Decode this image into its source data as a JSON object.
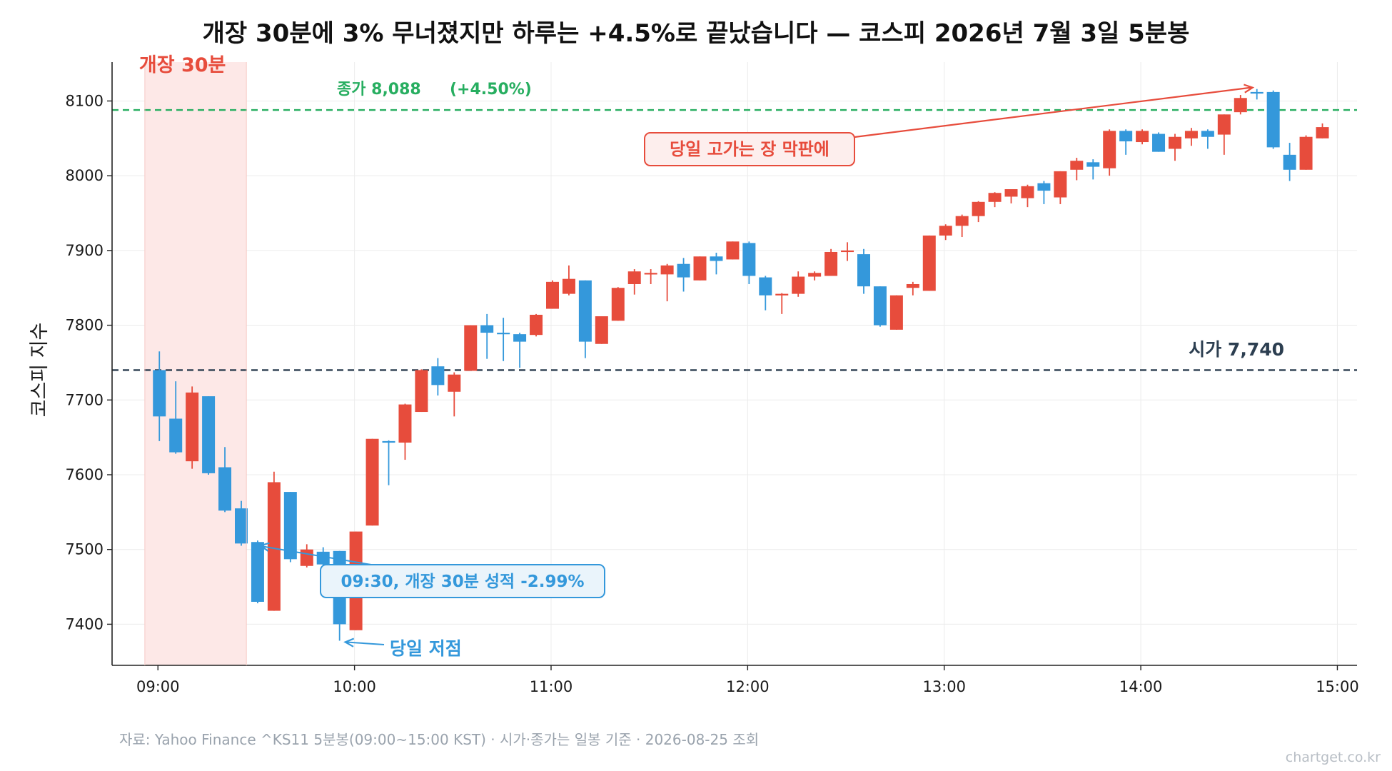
{
  "colors": {
    "up": "#e74c3c",
    "down": "#3498db",
    "open_line": "#2c3e50",
    "close_line": "#27ae60",
    "open_window": "#fde8e7",
    "grid": "#ececec"
  },
  "chart_data": {
    "type": "candlestick",
    "title": "개장 30분에 3% 무너졌지만 하루는 +4.5%로 끝났습니다 — 코스피 2026년 7월 3일 5분봉",
    "ylabel": "코스피 지수",
    "xlabel": "",
    "ylim": [
      7345,
      8152
    ],
    "xlim": [
      "08:46",
      "15:06"
    ],
    "yticks": [
      7400,
      7500,
      7600,
      7700,
      7800,
      7900,
      8000,
      8100
    ],
    "ytick_labels": [
      "7400",
      "7500",
      "7600",
      "7700",
      "7800",
      "7900",
      "8000",
      "8100"
    ],
    "xticks": [
      "09:00",
      "10:00",
      "11:00",
      "12:00",
      "13:00",
      "14:00",
      "15:00"
    ],
    "grid": true,
    "legend": "none",
    "open_level": 7740,
    "close_level": 8088,
    "open_window": {
      "start": "08:56",
      "end": "09:27"
    },
    "annotations": {
      "open_window_label": "개장 30분",
      "close_label": "종가 8,088",
      "close_change": "(+4.50%)",
      "open_label": "시가 7,740",
      "high_note": "당일 고가는 장 막판에",
      "low_note": "당일 저점",
      "window_note": "09:30, 개장 30분 성적 -2.99%"
    },
    "candles": [
      {
        "t": "09:00",
        "o": 7740,
        "h": 7765,
        "l": 7645,
        "c": 7678
      },
      {
        "t": "09:05",
        "o": 7675,
        "h": 7725,
        "l": 7628,
        "c": 7630
      },
      {
        "t": "09:10",
        "o": 7618,
        "h": 7718,
        "l": 7608,
        "c": 7710
      },
      {
        "t": "09:15",
        "o": 7705,
        "h": 7705,
        "l": 7600,
        "c": 7602
      },
      {
        "t": "09:20",
        "o": 7610,
        "h": 7637,
        "l": 7550,
        "c": 7552
      },
      {
        "t": "09:25",
        "o": 7555,
        "h": 7565,
        "l": 7505,
        "c": 7508
      },
      {
        "t": "09:30",
        "o": 7510,
        "h": 7512,
        "l": 7428,
        "c": 7430
      },
      {
        "t": "09:35",
        "o": 7418,
        "h": 7604,
        "l": 7418,
        "c": 7590
      },
      {
        "t": "09:40",
        "o": 7577,
        "h": 7577,
        "l": 7483,
        "c": 7487
      },
      {
        "t": "09:45",
        "o": 7478,
        "h": 7507,
        "l": 7476,
        "c": 7500
      },
      {
        "t": "09:50",
        "o": 7497,
        "h": 7503,
        "l": 7478,
        "c": 7480
      },
      {
        "t": "09:55",
        "o": 7498,
        "h": 7498,
        "l": 7378,
        "c": 7400
      },
      {
        "t": "10:00",
        "o": 7392,
        "h": 7524,
        "l": 7392,
        "c": 7524
      },
      {
        "t": "10:05",
        "o": 7532,
        "h": 7648,
        "l": 7532,
        "c": 7648
      },
      {
        "t": "10:10",
        "o": 7645,
        "h": 7646,
        "l": 7586,
        "c": 7644
      },
      {
        "t": "10:15",
        "o": 7643,
        "h": 7695,
        "l": 7620,
        "c": 7694
      },
      {
        "t": "10:20",
        "o": 7684,
        "h": 7741,
        "l": 7684,
        "c": 7740
      },
      {
        "t": "10:25",
        "o": 7745,
        "h": 7756,
        "l": 7706,
        "c": 7720
      },
      {
        "t": "10:30",
        "o": 7711,
        "h": 7737,
        "l": 7678,
        "c": 7734
      },
      {
        "t": "10:35",
        "o": 7739,
        "h": 7800,
        "l": 7739,
        "c": 7800
      },
      {
        "t": "10:40",
        "o": 7800,
        "h": 7815,
        "l": 7755,
        "c": 7790
      },
      {
        "t": "10:45",
        "o": 7790,
        "h": 7810,
        "l": 7752,
        "c": 7788
      },
      {
        "t": "10:50",
        "o": 7788,
        "h": 7790,
        "l": 7743,
        "c": 7778
      },
      {
        "t": "10:55",
        "o": 7787,
        "h": 7815,
        "l": 7785,
        "c": 7814
      },
      {
        "t": "11:00",
        "o": 7822,
        "h": 7860,
        "l": 7822,
        "c": 7858
      },
      {
        "t": "11:05",
        "o": 7842,
        "h": 7880,
        "l": 7840,
        "c": 7862
      },
      {
        "t": "11:10",
        "o": 7860,
        "h": 7860,
        "l": 7756,
        "c": 7778
      },
      {
        "t": "11:15",
        "o": 7775,
        "h": 7812,
        "l": 7775,
        "c": 7812
      },
      {
        "t": "11:20",
        "o": 7806,
        "h": 7851,
        "l": 7806,
        "c": 7850
      },
      {
        "t": "11:25",
        "o": 7855,
        "h": 7875,
        "l": 7841,
        "c": 7872
      },
      {
        "t": "11:30",
        "o": 7868,
        "h": 7875,
        "l": 7855,
        "c": 7870
      },
      {
        "t": "11:35",
        "o": 7868,
        "h": 7882,
        "l": 7832,
        "c": 7880
      },
      {
        "t": "11:40",
        "o": 7882,
        "h": 7890,
        "l": 7845,
        "c": 7864
      },
      {
        "t": "11:45",
        "o": 7860,
        "h": 7892,
        "l": 7860,
        "c": 7892
      },
      {
        "t": "11:50",
        "o": 7892,
        "h": 7897,
        "l": 7868,
        "c": 7886
      },
      {
        "t": "11:55",
        "o": 7888,
        "h": 7912,
        "l": 7888,
        "c": 7912
      },
      {
        "t": "12:00",
        "o": 7910,
        "h": 7912,
        "l": 7855,
        "c": 7866
      },
      {
        "t": "12:05",
        "o": 7864,
        "h": 7866,
        "l": 7820,
        "c": 7840
      },
      {
        "t": "12:10",
        "o": 7840,
        "h": 7843,
        "l": 7815,
        "c": 7842
      },
      {
        "t": "12:15",
        "o": 7842,
        "h": 7872,
        "l": 7838,
        "c": 7865
      },
      {
        "t": "12:20",
        "o": 7865,
        "h": 7872,
        "l": 7860,
        "c": 7870
      },
      {
        "t": "12:25",
        "o": 7866,
        "h": 7902,
        "l": 7866,
        "c": 7898
      },
      {
        "t": "12:30",
        "o": 7898,
        "h": 7911,
        "l": 7886,
        "c": 7900
      },
      {
        "t": "12:35",
        "o": 7895,
        "h": 7902,
        "l": 7842,
        "c": 7852
      },
      {
        "t": "12:40",
        "o": 7852,
        "h": 7852,
        "l": 7798,
        "c": 7800
      },
      {
        "t": "12:45",
        "o": 7794,
        "h": 7840,
        "l": 7794,
        "c": 7840
      },
      {
        "t": "12:50",
        "o": 7850,
        "h": 7858,
        "l": 7840,
        "c": 7855
      },
      {
        "t": "12:55",
        "o": 7846,
        "h": 7920,
        "l": 7846,
        "c": 7920
      },
      {
        "t": "13:00",
        "o": 7920,
        "h": 7935,
        "l": 7914,
        "c": 7933
      },
      {
        "t": "13:05",
        "o": 7933,
        "h": 7948,
        "l": 7918,
        "c": 7946
      },
      {
        "t": "13:10",
        "o": 7946,
        "h": 7966,
        "l": 7938,
        "c": 7965
      },
      {
        "t": "13:15",
        "o": 7965,
        "h": 7978,
        "l": 7958,
        "c": 7977
      },
      {
        "t": "13:20",
        "o": 7972,
        "h": 7982,
        "l": 7963,
        "c": 7982
      },
      {
        "t": "13:25",
        "o": 7970,
        "h": 7988,
        "l": 7958,
        "c": 7986
      },
      {
        "t": "13:30",
        "o": 7990,
        "h": 7993,
        "l": 7962,
        "c": 7980
      },
      {
        "t": "13:35",
        "o": 7971,
        "h": 8006,
        "l": 7962,
        "c": 8006
      },
      {
        "t": "13:40",
        "o": 8008,
        "h": 8024,
        "l": 7994,
        "c": 8020
      },
      {
        "t": "13:45",
        "o": 8018,
        "h": 8022,
        "l": 7995,
        "c": 8012
      },
      {
        "t": "13:50",
        "o": 8010,
        "h": 8062,
        "l": 8000,
        "c": 8060
      },
      {
        "t": "13:55",
        "o": 8060,
        "h": 8062,
        "l": 8028,
        "c": 8046
      },
      {
        "t": "14:00",
        "o": 8045,
        "h": 8062,
        "l": 8042,
        "c": 8060
      },
      {
        "t": "14:05",
        "o": 8056,
        "h": 8058,
        "l": 8032,
        "c": 8032
      },
      {
        "t": "14:10",
        "o": 8036,
        "h": 8056,
        "l": 8020,
        "c": 8052
      },
      {
        "t": "14:15",
        "o": 8050,
        "h": 8064,
        "l": 8040,
        "c": 8060
      },
      {
        "t": "14:20",
        "o": 8060,
        "h": 8062,
        "l": 8036,
        "c": 8052
      },
      {
        "t": "14:25",
        "o": 8055,
        "h": 8082,
        "l": 8028,
        "c": 8082
      },
      {
        "t": "14:30",
        "o": 8085,
        "h": 8108,
        "l": 8082,
        "c": 8104
      },
      {
        "t": "14:35",
        "o": 8112,
        "h": 8116,
        "l": 8102,
        "c": 8110
      },
      {
        "t": "14:40",
        "o": 8112,
        "h": 8114,
        "l": 8036,
        "c": 8038
      },
      {
        "t": "14:45",
        "o": 8028,
        "h": 8044,
        "l": 7993,
        "c": 8008
      },
      {
        "t": "14:50",
        "o": 8008,
        "h": 8054,
        "l": 8008,
        "c": 8052
      },
      {
        "t": "14:55",
        "o": 8050,
        "h": 8070,
        "l": 8050,
        "c": 8065
      }
    ]
  },
  "footer": {
    "source": "자료: Yahoo Finance ^KS11 5분봉(09:00~15:00 KST) · 시가·종가는 일봉 기준 · 2026-08-25 조회",
    "watermark": "chartget.co.kr"
  }
}
